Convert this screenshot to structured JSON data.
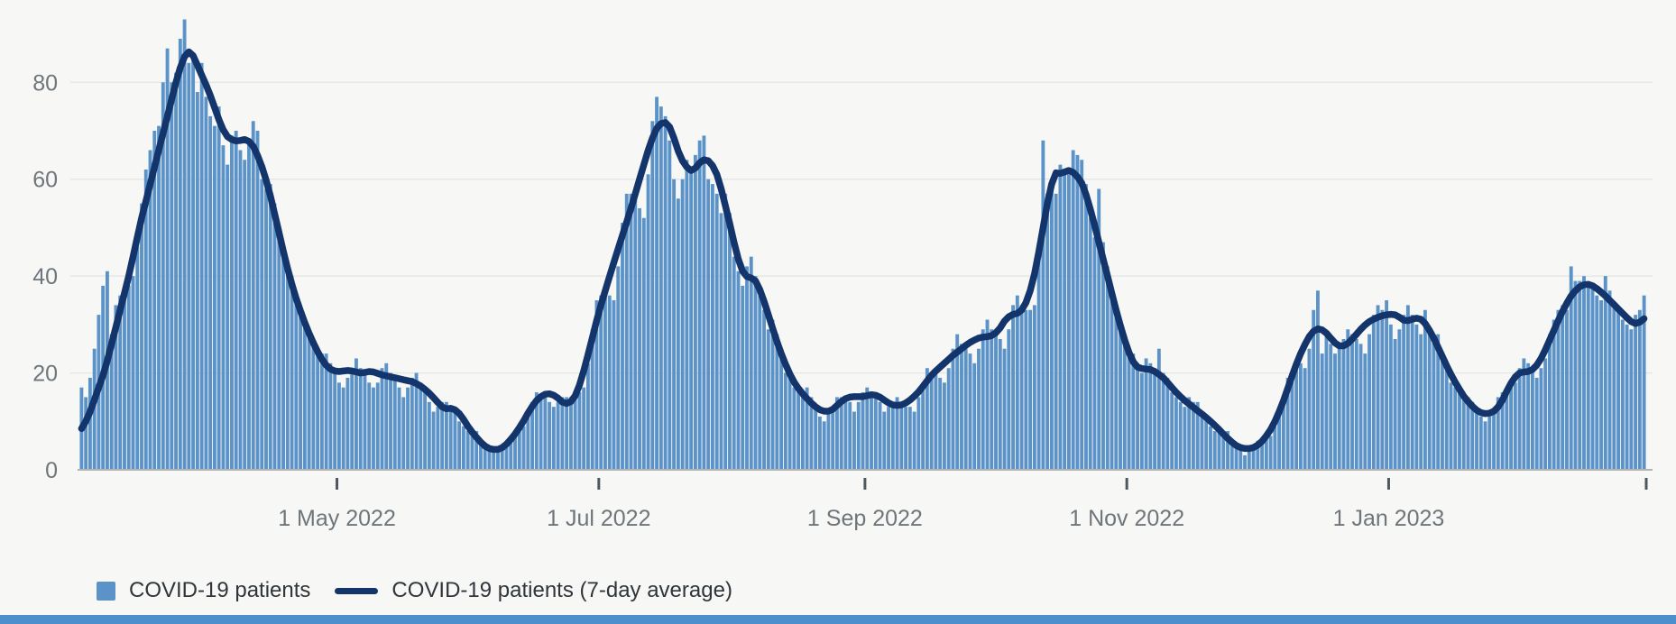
{
  "page": {
    "background": "#f7f7f5",
    "bottom_strip_color": "#4d8fcc"
  },
  "legend": {
    "items": [
      {
        "label": "COVID-19 patients",
        "swatch": "square",
        "color": "#5b93c8"
      },
      {
        "label": "COVID-19 patients (7-day average)",
        "swatch": "line",
        "color": "#14356b"
      }
    ]
  },
  "chart_data": {
    "type": "bar",
    "title": "",
    "xlabel": "",
    "ylabel": "",
    "ylim": [
      0,
      97
    ],
    "yticks": [
      0,
      20,
      40,
      60,
      80
    ],
    "grid": true,
    "legend_position": "bottom",
    "x_unit": "day",
    "xticks": [
      {
        "label": "1 May 2022",
        "day": 60
      },
      {
        "label": "1 Jul 2022",
        "day": 121
      },
      {
        "label": "1 Sep 2022",
        "day": 183
      },
      {
        "label": "1 Nov 2022",
        "day": 244
      },
      {
        "label": "1 Jan 2023",
        "day": 305
      },
      {
        "label": "",
        "day": 365
      }
    ],
    "colors": {
      "bar": "#5b93c8",
      "line": "#14356b",
      "grid": "#e7e7e5",
      "axis": "#b1b4b6",
      "tick": "#4e585e",
      "tick_label": "#6e767b"
    },
    "series": [
      {
        "name": "COVID-19 patients",
        "type": "bar",
        "values": [
          17,
          15,
          19,
          25,
          32,
          38,
          41,
          28,
          34,
          36,
          37,
          38,
          40,
          46,
          55,
          62,
          66,
          70,
          71,
          80,
          87,
          80,
          82,
          89,
          93,
          84,
          86,
          78,
          84,
          77,
          73,
          71,
          75,
          67,
          63,
          69,
          70,
          66,
          64,
          68,
          72,
          70,
          60,
          58,
          59,
          55,
          50,
          46,
          43,
          40,
          36,
          33,
          31,
          29,
          26,
          24,
          24,
          24,
          22,
          20,
          18,
          17,
          19,
          21,
          23,
          21,
          20,
          18,
          17,
          18,
          21,
          22,
          20,
          19,
          17,
          15,
          17,
          19,
          20,
          18,
          17,
          14,
          12,
          13,
          14,
          14,
          13,
          12,
          10,
          9,
          8,
          8,
          8,
          6,
          5,
          4,
          4,
          4,
          5,
          6,
          7,
          7,
          8,
          9,
          11,
          14,
          16,
          15,
          15,
          14,
          13,
          14,
          15,
          15,
          15,
          15,
          16,
          17,
          22,
          29,
          35,
          36,
          36,
          36,
          35,
          42,
          51,
          57,
          57,
          56,
          54,
          52,
          61,
          72,
          77,
          75,
          73,
          68,
          60,
          56,
          60,
          64,
          62,
          65,
          68,
          69,
          60,
          59,
          57,
          53,
          57,
          53,
          44,
          41,
          38,
          42,
          44,
          40,
          36,
          33,
          29,
          31,
          28,
          23,
          20,
          19,
          17,
          17,
          16,
          17,
          15,
          13,
          11,
          10,
          12,
          13,
          15,
          15,
          15,
          14,
          12,
          14,
          16,
          17,
          16,
          15,
          14,
          12,
          13,
          14,
          15,
          14,
          13,
          13,
          12,
          15,
          18,
          21,
          20,
          20,
          19,
          18,
          21,
          25,
          28,
          26,
          25,
          24,
          22,
          25,
          29,
          31,
          29,
          28,
          27,
          25,
          29,
          34,
          36,
          34,
          33,
          33,
          34,
          45,
          68,
          57,
          58,
          57,
          63,
          62,
          61,
          66,
          65,
          64,
          59,
          52,
          48,
          58,
          47,
          42,
          38,
          34,
          31,
          28,
          25,
          24,
          22,
          20,
          23,
          22,
          21,
          25,
          20,
          19,
          16,
          15,
          14,
          13,
          15,
          14,
          14,
          12,
          11,
          9,
          8,
          9,
          8,
          8,
          6,
          5,
          4,
          3,
          5,
          5,
          6,
          6,
          7,
          7,
          9,
          13,
          15,
          19,
          20,
          21,
          22,
          21,
          25,
          33,
          37,
          24,
          28,
          26,
          24,
          26,
          27,
          29,
          28,
          27,
          26,
          24,
          28,
          32,
          34,
          33,
          35,
          30,
          27,
          29,
          32,
          34,
          32,
          30,
          28,
          33,
          29,
          27,
          28,
          24,
          22,
          18,
          17,
          16,
          16,
          15,
          14,
          13,
          11,
          10,
          11,
          12,
          15,
          16,
          17,
          17,
          18,
          21,
          23,
          22,
          20,
          19,
          21,
          23,
          28,
          31,
          33,
          34,
          33,
          42,
          39,
          39,
          40,
          38,
          38,
          36,
          35,
          40,
          37,
          34,
          33,
          31,
          30,
          29,
          32,
          33,
          36
        ]
      },
      {
        "name": "COVID-19 patients (7-day average)",
        "type": "line",
        "values": [
          8.5,
          10,
          12,
          14.5,
          17,
          19.5,
          22.5,
          26,
          29.5,
          33,
          36.5,
          40,
          44,
          48,
          52,
          55.5,
          59,
          62.5,
          66,
          69.5,
          73,
          76.5,
          80,
          83,
          85.3,
          86.3,
          85.5,
          83.5,
          81.5,
          79.5,
          77.3,
          74.8,
          72.3,
          70.2,
          68.8,
          68.2,
          67.9,
          68,
          68.2,
          67.8,
          66.8,
          64.9,
          62.6,
          59.8,
          56.5,
          52.8,
          49,
          45.2,
          41.6,
          38.3,
          35.4,
          32.8,
          30.4,
          28.2,
          26.2,
          24.4,
          22.8,
          21.6,
          20.8,
          20.4,
          20.3,
          20.4,
          20.5,
          20.4,
          20.2,
          20,
          20.1,
          20.3,
          20.2,
          19.9,
          19.6,
          19.4,
          19.2,
          19,
          18.8,
          18.6,
          18.4,
          18.2,
          17.8,
          17.3,
          16.6,
          15.8,
          14.9,
          13.9,
          13,
          12.6,
          12.7,
          12.4,
          11.6,
          10.4,
          9,
          7.8,
          6.7,
          5.7,
          4.9,
          4.4,
          4.2,
          4.2,
          4.6,
          5.3,
          6.3,
          7.4,
          8.7,
          10.1,
          11.7,
          13.1,
          14.3,
          15.1,
          15.6,
          15.7,
          15.4,
          14.8,
          14,
          13.7,
          14.1,
          15.3,
          17.5,
          20.5,
          23.8,
          27.3,
          30.8,
          34,
          37,
          39.9,
          42.8,
          45.6,
          48.4,
          51.2,
          54,
          57,
          60,
          63,
          66,
          68.5,
          70.5,
          71.5,
          71.7,
          70.8,
          68.5,
          65.8,
          63.8,
          62.5,
          61.8,
          62.3,
          63.4,
          64,
          63.8,
          62.8,
          61,
          58,
          54.5,
          50.8,
          47,
          43.5,
          41,
          39.9,
          39.6,
          39,
          37.2,
          34.8,
          32,
          29.2,
          26.5,
          24,
          21.8,
          19.8,
          18.1,
          16.8,
          15.7,
          14.7,
          13.8,
          13,
          12.4,
          12.1,
          12.1,
          12.5,
          13.3,
          14.1,
          14.7,
          15,
          15.1,
          15.1,
          15.1,
          15.3,
          15.5,
          15.4,
          15,
          14.4,
          13.8,
          13.4,
          13.3,
          13.4,
          13.8,
          14.4,
          15.2,
          16.1,
          17.2,
          18.4,
          19.5,
          20.4,
          21.2,
          22,
          22.8,
          23.6,
          24.3,
          25,
          25.7,
          26.3,
          26.8,
          27.2,
          27.4,
          27.5,
          27.7,
          28.3,
          29.3,
          30.7,
          31.6,
          32.1,
          32.3,
          33,
          34.5,
          37,
          40.5,
          45,
          50,
          55,
          59,
          61.3,
          61.2,
          61.5,
          61.8,
          61.4,
          60.5,
          59.2,
          56.8,
          53.8,
          50.5,
          47,
          43.5,
          40,
          36.5,
          33,
          29.8,
          26.8,
          24.2,
          22.3,
          21.2,
          20.9,
          20.8,
          20.7,
          20.3,
          19.7,
          19,
          18,
          17,
          16,
          15.1,
          14.3,
          13.6,
          12.9,
          12.2,
          11.5,
          10.8,
          10,
          9.2,
          8.3,
          7.4,
          6.5,
          5.7,
          5,
          4.6,
          4.4,
          4.4,
          4.6,
          5.1,
          5.9,
          7,
          8.3,
          10,
          12,
          14.3,
          16.8,
          19.4,
          21.8,
          24,
          25.9,
          27.5,
          28.6,
          29.1,
          28.9,
          28.2,
          27.2,
          26.2,
          25.6,
          25.6,
          26.1,
          27,
          28,
          29,
          29.9,
          30.6,
          31.1,
          31.5,
          31.8,
          32,
          32.1,
          32,
          31.5,
          30.9,
          30.8,
          31.1,
          31.3,
          31.1,
          30.2,
          28.8,
          27.2,
          25.3,
          23.4,
          21.5,
          19.7,
          18.1,
          16.6,
          15.2,
          14.1,
          13.1,
          12.3,
          11.8,
          11.6,
          11.7,
          12.1,
          13,
          14.4,
          16.2,
          17.9,
          19.2,
          20,
          20.2,
          20.3,
          20.7,
          21.6,
          23,
          24.8,
          26.8,
          28.8,
          30.8,
          32.7,
          34.4,
          35.9,
          37,
          37.8,
          38.2,
          38.3,
          38,
          37.4,
          36.7,
          35.9,
          35,
          34.1,
          33.2,
          32.3,
          31.4,
          30.6,
          30.2,
          30.5,
          31.2
        ]
      }
    ]
  }
}
